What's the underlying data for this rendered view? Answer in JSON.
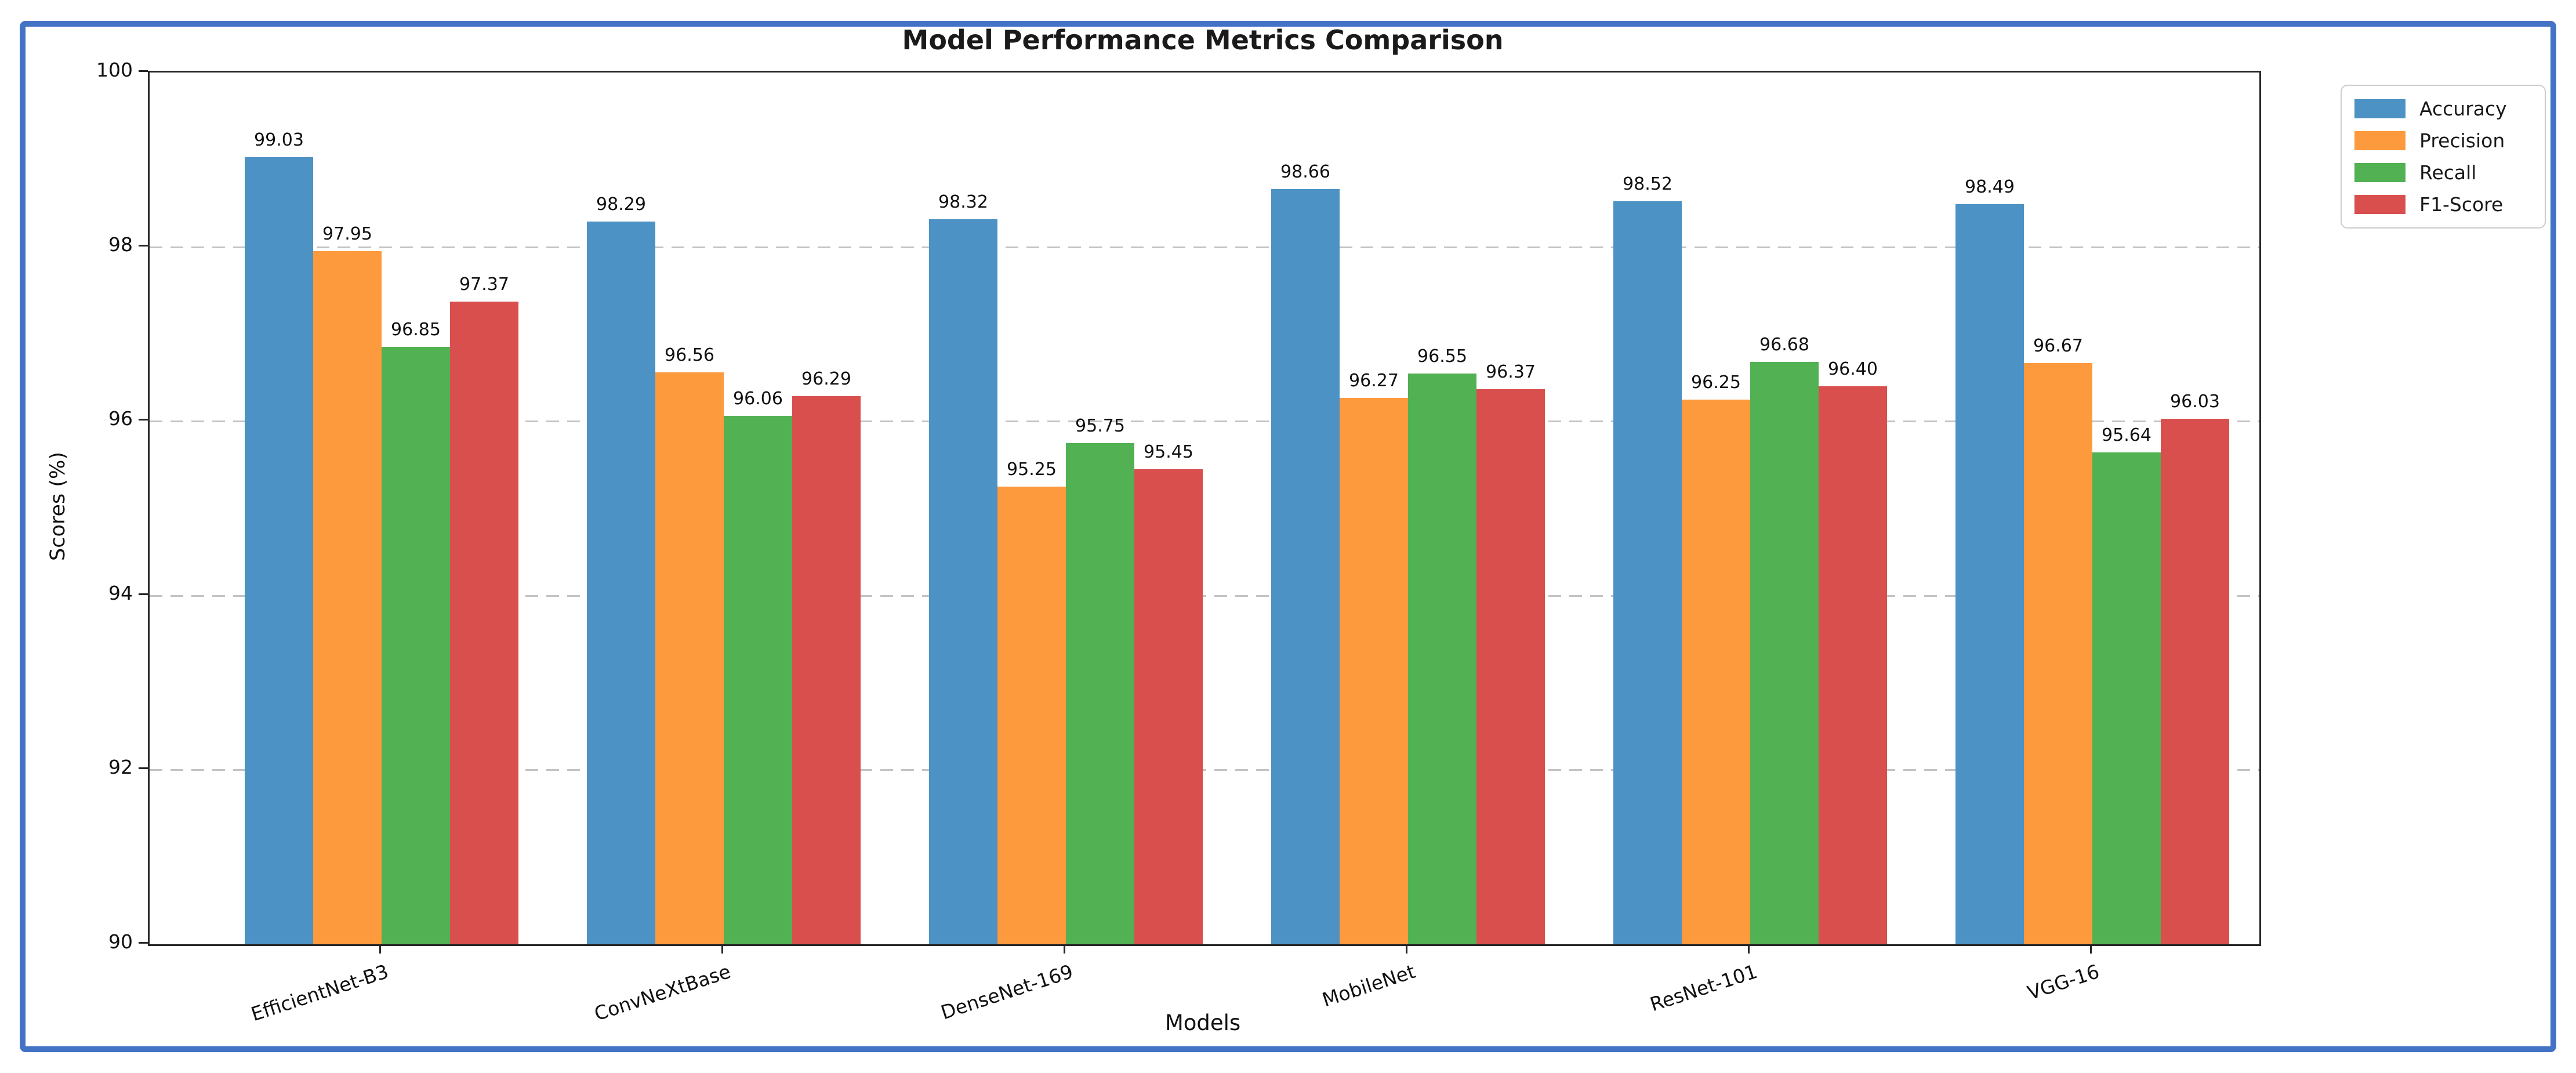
{
  "frame": {
    "border_color": "#4472C4"
  },
  "chart_data": {
    "type": "bar",
    "title": "Model Performance Metrics Comparison",
    "xlabel": "Models",
    "ylabel": "Scores (%)",
    "ylim": [
      90,
      100
    ],
    "yticks": [
      100,
      98,
      96,
      94,
      92,
      90
    ],
    "grid": "horizontal-dashed",
    "grid_color": "#c3c3c3",
    "legend_position": "top-right-outside",
    "bar_labels_shown": true,
    "bar_label_decimals": 2,
    "categories": [
      "EfficientNet-B3",
      "ConvNeXtBase",
      "DenseNet-169",
      "MobileNet",
      "ResNet-101",
      "VGG-16"
    ],
    "series": [
      {
        "name": "Accuracy",
        "color": "#4C92C4",
        "values": [
          99.03,
          98.29,
          98.32,
          98.66,
          98.52,
          98.49
        ]
      },
      {
        "name": "Precision",
        "color": "#FC9A3D",
        "values": [
          97.95,
          96.56,
          95.25,
          96.27,
          96.25,
          96.67
        ]
      },
      {
        "name": "Recall",
        "color": "#52B152",
        "values": [
          96.85,
          96.06,
          95.75,
          96.55,
          96.68,
          95.64
        ]
      },
      {
        "name": "F1-Score",
        "color": "#D94F4E",
        "values": [
          97.37,
          96.29,
          95.45,
          96.37,
          96.4,
          96.03
        ]
      }
    ]
  }
}
